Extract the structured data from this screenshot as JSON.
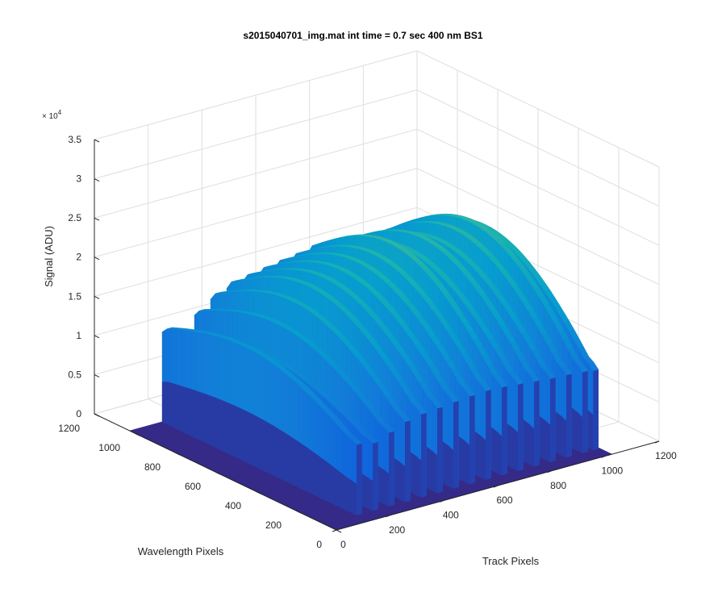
{
  "chart_data": {
    "type": "surface",
    "title": "s2015040701_img.mat int time = 0.7 sec  400 nm BS1",
    "xlabel": "Track Pixels",
    "ylabel": "Wavelength Pixels",
    "zlabel": "Signal (ADU)",
    "z_multiplier_label": "× 10",
    "z_multiplier_exponent": "4",
    "xlim": [
      0,
      1200
    ],
    "ylim": [
      0,
      1200
    ],
    "zlim": [
      0,
      35000
    ],
    "x_ticks": [
      "0",
      "200",
      "400",
      "600",
      "800",
      "1000",
      "1200"
    ],
    "y_ticks": [
      "0",
      "200",
      "400",
      "600",
      "800",
      "1000",
      "1200"
    ],
    "z_ticks": [
      "0",
      "0.5",
      "1",
      "1.5",
      "2",
      "2.5",
      "3",
      "3.5"
    ],
    "grid": true,
    "colormap": "parula",
    "surface_extent": {
      "x": [
        0,
        1024
      ],
      "y": [
        0,
        1024
      ]
    },
    "illuminated_wavelength_range": [
      60,
      1024
    ],
    "tracks": [
      {
        "x_start": 120,
        "x_end": 140,
        "plateau": 9000,
        "peak": 15500
      },
      {
        "x_start": 180,
        "x_end": 200,
        "plateau": 8600,
        "peak": 14000
      },
      {
        "x_start": 240,
        "x_end": 260,
        "plateau": 9400,
        "peak": 17500
      },
      {
        "x_start": 300,
        "x_end": 320,
        "plateau": 10200,
        "peak": 20000
      },
      {
        "x_start": 360,
        "x_end": 380,
        "plateau": 10600,
        "peak": 21500
      },
      {
        "x_start": 420,
        "x_end": 440,
        "plateau": 10800,
        "peak": 22000
      },
      {
        "x_start": 480,
        "x_end": 500,
        "plateau": 11000,
        "peak": 22500
      },
      {
        "x_start": 540,
        "x_end": 560,
        "plateau": 11200,
        "peak": 23000
      },
      {
        "x_start": 600,
        "x_end": 620,
        "plateau": 11300,
        "peak": 23500
      },
      {
        "x_start": 660,
        "x_end": 680,
        "plateau": 11200,
        "peak": 24500
      },
      {
        "x_start": 720,
        "x_end": 740,
        "plateau": 11000,
        "peak": 23000
      },
      {
        "x_start": 780,
        "x_end": 800,
        "plateau": 10800,
        "peak": 24000
      },
      {
        "x_start": 840,
        "x_end": 860,
        "plateau": 10600,
        "peak": 23000
      },
      {
        "x_start": 900,
        "x_end": 920,
        "plateau": 10500,
        "peak": 24000
      },
      {
        "x_start": 960,
        "x_end": 980,
        "plateau": 10300,
        "peak": 24500
      },
      {
        "x_start": 1000,
        "x_end": 1020,
        "plateau": 10100,
        "peak": 23500
      }
    ]
  }
}
